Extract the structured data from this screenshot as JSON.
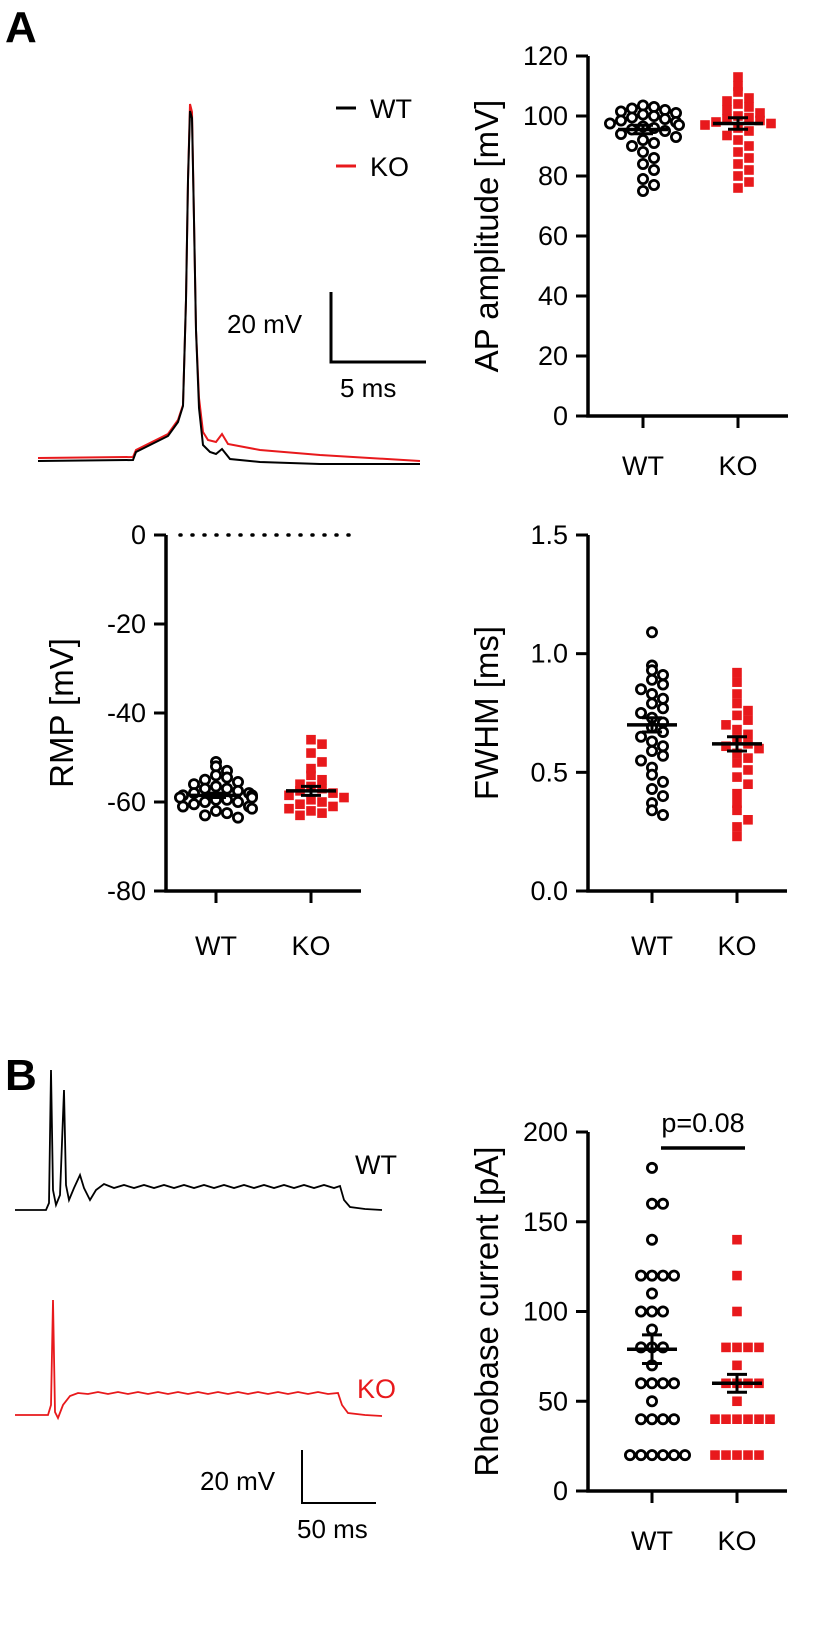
{
  "colors": {
    "wt": "#000000",
    "ko": "#e8191c"
  },
  "panels": {
    "a": "A",
    "b": "B"
  },
  "legend": {
    "wt": "WT",
    "ko": "KO"
  },
  "scale_a": {
    "vertical": "20 mV",
    "horizontal": "5 ms"
  },
  "scale_b": {
    "vertical": "20 mV",
    "horizontal": "50 ms"
  },
  "trace_labels": {
    "wt": "WT",
    "ko": "KO"
  },
  "significance": {
    "text": "p=0.08"
  },
  "chart_data": [
    {
      "id": "ap_amplitude",
      "type": "scatter",
      "ylabel": "AP amplitude [mV]",
      "categories": [
        "WT",
        "KO"
      ],
      "ylim": [
        0,
        120
      ],
      "yticks": [
        0,
        20,
        40,
        60,
        80,
        100,
        120
      ],
      "ytick_labels": [
        "0",
        "20",
        "40",
        "60",
        "80",
        "100",
        "120"
      ],
      "series": [
        {
          "name": "WT",
          "mean": 95.5,
          "sem": 1.4,
          "values": [
            103.5,
            103,
            102.5,
            102,
            101.5,
            101,
            100.5,
            100,
            99.5,
            99,
            98.5,
            98,
            97.5,
            97,
            96.5,
            96,
            95.5,
            95,
            94,
            93,
            92,
            91,
            90,
            88,
            86,
            84,
            82,
            79,
            77,
            75
          ]
        },
        {
          "name": "KO",
          "mean": 97.5,
          "sem": 1.9,
          "values": [
            113,
            110,
            108,
            106,
            105,
            104,
            103,
            102,
            101,
            100,
            99.5,
            99,
            98.5,
            98,
            97.5,
            97,
            96,
            95,
            93.5,
            92,
            90,
            88,
            86,
            84,
            82,
            80,
            78,
            76
          ]
        }
      ]
    },
    {
      "id": "rmp",
      "type": "scatter",
      "ylabel": "RMP [mV]",
      "categories": [
        "WT",
        "KO"
      ],
      "ylim": [
        -80,
        0
      ],
      "yticks": [
        -80,
        -60,
        -40,
        -20,
        0
      ],
      "ytick_labels": [
        "-80",
        "-60",
        "-40",
        "-20",
        "0"
      ],
      "zero_line": true,
      "series": [
        {
          "name": "WT",
          "mean": -58.5,
          "sem": 0.5,
          "values": [
            -51,
            -52,
            -53,
            -54,
            -54.5,
            -55,
            -55.5,
            -56,
            -56.5,
            -57,
            -57,
            -57.5,
            -58,
            -58,
            -58.5,
            -58.5,
            -59,
            -59,
            -59.5,
            -59.5,
            -60,
            -60,
            -60.5,
            -61,
            -61,
            -61.5,
            -62,
            -62.5,
            -63,
            -63.5
          ]
        },
        {
          "name": "KO",
          "mean": -57.5,
          "sem": 1.0,
          "values": [
            -46,
            -47,
            -49,
            -51,
            -52.5,
            -54,
            -55,
            -56,
            -56.5,
            -57,
            -57.5,
            -58,
            -58.5,
            -59,
            -59.5,
            -60,
            -60.5,
            -61,
            -61.5,
            -62,
            -62.5,
            -63
          ]
        }
      ]
    },
    {
      "id": "fwhm",
      "type": "scatter",
      "ylabel": "FWHM [ms]",
      "categories": [
        "WT",
        "KO"
      ],
      "ylim": [
        0,
        1.5
      ],
      "yticks": [
        0,
        0.5,
        1.0,
        1.5
      ],
      "ytick_labels": [
        "0.0",
        "0.5",
        "1.0",
        "1.5"
      ],
      "series": [
        {
          "name": "WT",
          "mean": 0.7,
          "sem": 0.03,
          "values": [
            1.09,
            0.95,
            0.93,
            0.91,
            0.89,
            0.87,
            0.85,
            0.83,
            0.81,
            0.79,
            0.77,
            0.75,
            0.73,
            0.71,
            0.69,
            0.67,
            0.65,
            0.63,
            0.61,
            0.59,
            0.57,
            0.55,
            0.52,
            0.49,
            0.46,
            0.43,
            0.4,
            0.37,
            0.34,
            0.32
          ]
        },
        {
          "name": "KO",
          "mean": 0.62,
          "sem": 0.03,
          "values": [
            0.92,
            0.88,
            0.83,
            0.79,
            0.76,
            0.74,
            0.72,
            0.7,
            0.68,
            0.66,
            0.64,
            0.62,
            0.61,
            0.6,
            0.58,
            0.56,
            0.54,
            0.51,
            0.48,
            0.45,
            0.41,
            0.37,
            0.34,
            0.3,
            0.27,
            0.23
          ]
        }
      ]
    },
    {
      "id": "rheobase",
      "type": "scatter",
      "ylabel": "Rheobase current [pA]",
      "categories": [
        "WT",
        "KO"
      ],
      "ylim": [
        0,
        200
      ],
      "yticks": [
        0,
        50,
        100,
        150,
        200
      ],
      "ytick_labels": [
        "0",
        "50",
        "100",
        "150",
        "200"
      ],
      "series": [
        {
          "name": "WT",
          "mean": 79,
          "sem": 8,
          "values": [
            180,
            160,
            160,
            140,
            120,
            120,
            120,
            120,
            110,
            100,
            100,
            100,
            90,
            80,
            80,
            80,
            70,
            60,
            60,
            60,
            60,
            50,
            40,
            40,
            40,
            40,
            20,
            20,
            20,
            20,
            20,
            20
          ]
        },
        {
          "name": "KO",
          "mean": 60,
          "sem": 5,
          "values": [
            140,
            120,
            100,
            80,
            80,
            80,
            80,
            70,
            60,
            60,
            60,
            60,
            50,
            40,
            40,
            40,
            40,
            40,
            40,
            20,
            20,
            20,
            20,
            20
          ]
        }
      ]
    }
  ]
}
